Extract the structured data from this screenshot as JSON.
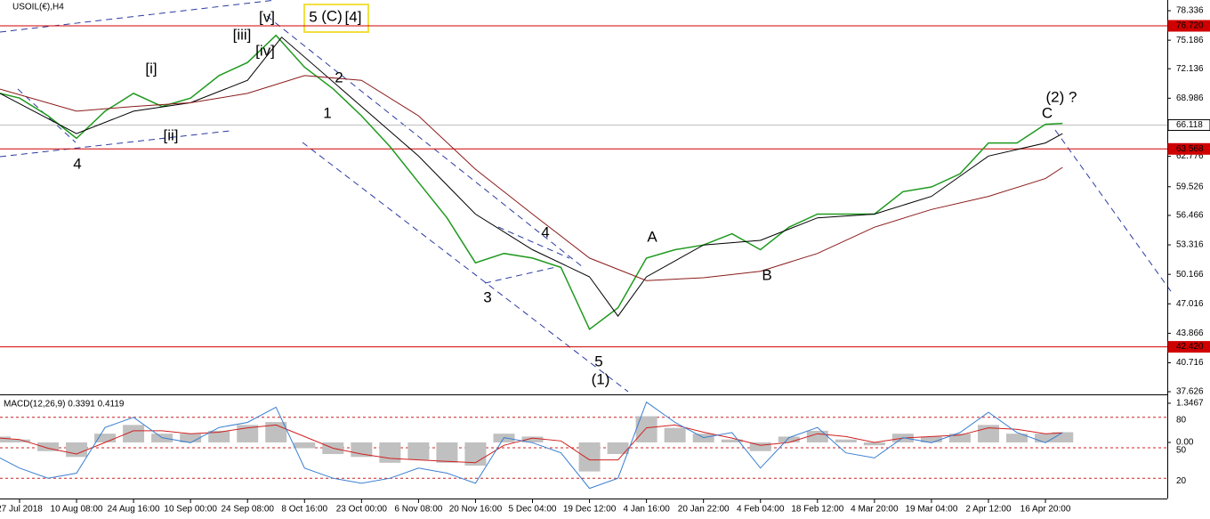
{
  "chart_data": [
    {
      "type": "line",
      "title": "USOIL(€),H4",
      "xlim": [
        -0.343,
        20.138
      ],
      "xticks": [
        {
          "value": 0,
          "label": "27 Jul 2018"
        },
        {
          "value": 1,
          "label": "10 Aug 08:00"
        },
        {
          "value": 2,
          "label": "24 Aug 16:00"
        },
        {
          "value": 3,
          "label": "10 Sep 00:00"
        },
        {
          "value": 4,
          "label": "24 Sep 08:00"
        },
        {
          "value": 5,
          "label": "8 Oct 16:00"
        },
        {
          "value": 6,
          "label": "23 Oct 00:00"
        },
        {
          "value": 7,
          "label": "6 Nov 08:00"
        },
        {
          "value": 8,
          "label": "20 Nov 16:00"
        },
        {
          "value": 9,
          "label": "5 Dec 04:00"
        },
        {
          "value": 10,
          "label": "19 Dec 12:00"
        },
        {
          "value": 11,
          "label": "4 Jan 16:00"
        },
        {
          "value": 12,
          "label": "20 Jan 22:00"
        },
        {
          "value": 13,
          "label": "4 Feb 04:00"
        },
        {
          "value": 14,
          "label": "18 Feb 12:00"
        },
        {
          "value": 15,
          "label": "4 Mar 20:00"
        },
        {
          "value": 16,
          "label": "19 Mar 04:00"
        },
        {
          "value": 17,
          "label": "2 Apr 12:00"
        },
        {
          "value": 18,
          "label": "16 Apr 20:00"
        }
      ],
      "ylim": [
        37.34,
        79.48
      ],
      "yticks": [
        78.336,
        75.186,
        72.136,
        68.986,
        62.776,
        59.526,
        56.466,
        53.316,
        50.166,
        47.016,
        43.866,
        40.716,
        37.626
      ],
      "series": [
        {
          "color": "#1f9a1f",
          "x": [
            -0.343,
            0,
            0.5,
            1,
            1.5,
            2,
            2.5,
            3,
            3.5,
            4,
            4.5,
            5,
            5.5,
            6,
            6.5,
            7,
            7.5,
            8,
            8.5,
            9,
            9.5,
            10,
            10.5,
            11,
            11.5,
            12,
            12.5,
            13,
            13.5,
            14,
            14.5,
            15,
            15.5,
            16,
            16.5,
            17,
            17.5,
            18,
            18.3
          ],
          "values": [
            69.5,
            69.0,
            67.1,
            64.7,
            67.6,
            69.5,
            68.1,
            69.0,
            71.4,
            72.8,
            75.7,
            72.3,
            70.0,
            67.1,
            63.8,
            60.0,
            56.2,
            51.4,
            52.4,
            51.9,
            50.9,
            44.3,
            46.6,
            51.9,
            52.8,
            53.3,
            54.5,
            52.8,
            55.2,
            56.6,
            56.6,
            56.6,
            59.0,
            59.5,
            60.9,
            64.2,
            64.2,
            66.2,
            66.3
          ]
        },
        {
          "color": "#000000",
          "x": [
            -0.343,
            1,
            2,
            3,
            4,
            4.6,
            6,
            7,
            8,
            9,
            10,
            10.5,
            11,
            12,
            13,
            14,
            15,
            16,
            17,
            18,
            18.3
          ],
          "values": [
            69.5,
            65.2,
            67.6,
            68.5,
            70.9,
            75.5,
            68.1,
            62.8,
            56.6,
            52.8,
            49.9,
            45.7,
            49.9,
            53.3,
            53.8,
            56.2,
            56.6,
            58.5,
            62.8,
            64.2,
            65.2
          ]
        },
        {
          "color": "#8b1a1a",
          "x": [
            -0.343,
            1,
            2,
            3,
            4,
            5,
            6,
            7,
            8,
            9,
            10,
            11,
            12,
            13,
            14,
            15,
            16,
            17,
            18,
            18.3
          ],
          "values": [
            69.96,
            67.6,
            68.1,
            68.5,
            69.5,
            71.4,
            70.9,
            67.1,
            61.4,
            56.6,
            51.9,
            49.5,
            49.8,
            50.5,
            52.4,
            55.2,
            57.1,
            58.5,
            60.4,
            61.6
          ]
        }
      ],
      "hlines": [
        {
          "value": 76.72,
          "label": "76.720",
          "color": "#d00000"
        },
        {
          "value": 63.568,
          "color": "#d00000"
        },
        {
          "value": 42.42,
          "label": "42.420",
          "color": "#d00000"
        },
        {
          "value": 66.118,
          "color": "#c0c0c0"
        }
      ],
      "annotations": [
        {
          "text": "[v]",
          "color": "#a0522d"
        },
        {
          "text": "5",
          "color": "#1a2a9a"
        },
        {
          "text": "(C)",
          "color": "#3a8a3a"
        },
        {
          "text": "[4]",
          "color": "#c02020"
        },
        {
          "text": "[iii]",
          "color": "#a0522d"
        },
        {
          "text": "[iv]",
          "color": "#a0522d"
        },
        {
          "text": "[i]",
          "color": "#a0522d"
        },
        {
          "text": "[ii]",
          "color": "#a0522d"
        },
        {
          "text": "4",
          "color": "#1a2a9a"
        },
        {
          "text": "2",
          "color": "#1a2a9a"
        },
        {
          "text": "1",
          "color": "#1a2a9a"
        },
        {
          "text": "3",
          "color": "#1a2a9a"
        },
        {
          "text": "4",
          "color": "#1a2a9a"
        },
        {
          "text": "5",
          "color": "#1a2a9a"
        },
        {
          "text": "(1)",
          "color": "#3a8a3a"
        },
        {
          "text": "A",
          "color": "#1a2a9a"
        },
        {
          "text": "B",
          "color": "#1a2a9a"
        },
        {
          "text": "C",
          "color": "#1a2a9a"
        },
        {
          "text": "(2) ?",
          "color": "#3a8a3a"
        }
      ]
    },
    {
      "type": "macd",
      "title": "MACD(12,26,9) 0.3391 0.4119",
      "xlim": [
        -0.343,
        20.138
      ],
      "x": [
        -0.343,
        0,
        0.5,
        1,
        1.5,
        2,
        2.5,
        3,
        3.5,
        4,
        4.5,
        5,
        5.5,
        6,
        6.5,
        7,
        7.5,
        8,
        8.5,
        9,
        9.5,
        10,
        10.5,
        11,
        11.5,
        12,
        12.5,
        13,
        13.5,
        14,
        14.5,
        15,
        15.5,
        16,
        16.5,
        17,
        17.5,
        18,
        18.3
      ],
      "ylim": [
        -1.93,
        1.56
      ],
      "yticks": [
        1.3467,
        {
          "value": 0,
          "label": "0.00"
        }
      ],
      "y2lim": [
        0,
        100
      ],
      "y2ticks": [
        80,
        50,
        20
      ],
      "series": [
        {
          "style": "bar",
          "color": "#c0c0c0",
          "values": [
            0.2,
            0.1,
            -0.3,
            -0.5,
            0.3,
            0.6,
            0.3,
            0.3,
            0.4,
            0.6,
            0.7,
            -0.2,
            -0.4,
            -0.5,
            -0.7,
            -0.6,
            -0.7,
            -0.8,
            0.3,
            0.2,
            0.0,
            -1.0,
            -0.4,
            0.9,
            0.5,
            0.3,
            0.1,
            -0.3,
            0.2,
            0.4,
            0.1,
            -0.1,
            0.3,
            0.2,
            0.3,
            0.6,
            0.3,
            0.3,
            0.35
          ]
        },
        {
          "style": "line",
          "color": "#d02020",
          "values": [
            0.15,
            0.1,
            -0.2,
            -0.4,
            0.0,
            0.4,
            0.4,
            0.3,
            0.35,
            0.5,
            0.6,
            0.2,
            -0.2,
            -0.4,
            -0.55,
            -0.6,
            -0.65,
            -0.7,
            -0.1,
            0.15,
            0.05,
            -0.6,
            -0.6,
            0.5,
            0.6,
            0.35,
            0.15,
            -0.1,
            0.0,
            0.3,
            0.2,
            0.0,
            0.15,
            0.2,
            0.25,
            0.5,
            0.45,
            0.3,
            0.33
          ]
        },
        {
          "style": "line",
          "color": "#3a7fd0",
          "axis": "y2",
          "values": [
            40,
            30,
            20,
            25,
            70,
            80,
            60,
            55,
            70,
            75,
            90,
            30,
            20,
            15,
            20,
            30,
            25,
            15,
            60,
            55,
            45,
            10,
            20,
            95,
            75,
            60,
            65,
            30,
            60,
            70,
            45,
            40,
            60,
            55,
            65,
            85,
            65,
            55,
            65
          ]
        }
      ]
    }
  ]
}
